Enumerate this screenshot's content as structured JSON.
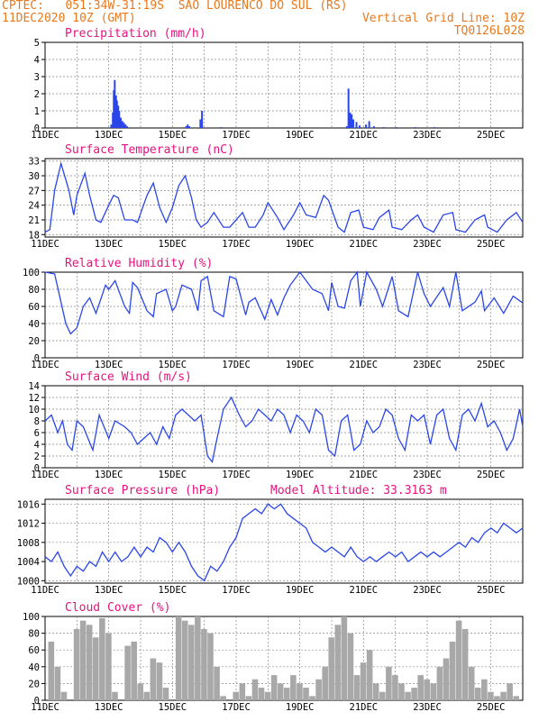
{
  "header": {
    "center": "CPTEC:",
    "coords": "051:34W-31:19S",
    "station": "SAO LOURENCO DO SUL (RS)",
    "init_time": "11DEC2020 10Z (GMT)",
    "grid_note": "Vertical Grid Line: 10Z",
    "model_code": "TQ0126L028"
  },
  "x_ticks": [
    "11DEC",
    "13DEC",
    "15DEC",
    "17DEC",
    "19DEC",
    "21DEC",
    "23DEC",
    "25DEC"
  ],
  "colors": {
    "line": "#2a46e8",
    "bars": "#2a46e8",
    "cloud": "#a8a8a8",
    "title": "#e6127e",
    "header": "#e8791e"
  },
  "chart_data": [
    {
      "type": "bar",
      "title": "Precipitation (mm/h)",
      "ylim": [
        0,
        5
      ],
      "yticks": [
        "0",
        "1",
        "2",
        "3",
        "4",
        "5"
      ],
      "x_unit": "days since 11DEC 10Z",
      "points": [
        [
          2.05,
          0.2
        ],
        [
          2.1,
          0.9
        ],
        [
          2.13,
          2.2
        ],
        [
          2.16,
          2.8
        ],
        [
          2.2,
          1.9
        ],
        [
          2.23,
          1.6
        ],
        [
          2.27,
          1.3
        ],
        [
          2.3,
          1.0
        ],
        [
          2.35,
          0.6
        ],
        [
          2.4,
          0.4
        ],
        [
          2.45,
          0.3
        ],
        [
          2.5,
          0.2
        ],
        [
          2.55,
          0.1
        ],
        [
          4.4,
          0.1
        ],
        [
          4.45,
          0.2
        ],
        [
          4.5,
          0.1
        ],
        [
          4.85,
          0.5
        ],
        [
          4.9,
          1.0
        ],
        [
          5.5,
          0.05
        ],
        [
          9.45,
          0.1
        ],
        [
          9.5,
          2.3
        ],
        [
          9.55,
          0.9
        ],
        [
          9.6,
          0.8
        ],
        [
          9.65,
          0.5
        ],
        [
          9.75,
          0.35
        ],
        [
          9.85,
          0.15
        ],
        [
          10.05,
          0.2
        ],
        [
          10.15,
          0.4
        ],
        [
          10.3,
          0.1
        ],
        [
          10.6,
          0.05
        ],
        [
          11.0,
          0.05
        ],
        [
          11.6,
          0.05
        ],
        [
          12.2,
          0.05
        ]
      ]
    },
    {
      "type": "line",
      "title": "Surface Temperature (nC)",
      "ylim": [
        17.5,
        33.5
      ],
      "yticks": [
        "18",
        "21",
        "24",
        "27",
        "30",
        "33"
      ],
      "x": [
        0,
        0.15,
        0.3,
        0.5,
        0.75,
        0.9,
        1.0,
        1.25,
        1.4,
        1.6,
        1.75,
        2.0,
        2.15,
        2.3,
        2.5,
        2.75,
        2.9,
        3.2,
        3.4,
        3.6,
        3.8,
        4.0,
        4.2,
        4.4,
        4.6,
        4.75,
        4.9,
        5.1,
        5.3,
        5.6,
        5.8,
        6.2,
        6.4,
        6.6,
        6.85,
        7.0,
        7.3,
        7.5,
        7.8,
        8.0,
        8.2,
        8.5,
        8.75,
        8.9,
        9.2,
        9.4,
        9.6,
        9.85,
        10.0,
        10.3,
        10.5,
        10.8,
        10.9,
        11.2,
        11.5,
        11.7,
        11.9,
        12.2,
        12.5,
        12.8,
        12.9,
        13.2,
        13.5,
        13.8,
        13.9,
        14.2,
        14.5,
        14.8,
        15.0
      ],
      "y": [
        18.5,
        19,
        27,
        32.5,
        27,
        22,
        26,
        30.5,
        26,
        21,
        20.5,
        24,
        26,
        25.5,
        21,
        21,
        20.5,
        26,
        28.5,
        23.5,
        20.5,
        23.5,
        28,
        30,
        25.5,
        21,
        19.5,
        20.5,
        22.5,
        19.5,
        19.5,
        22.5,
        19.5,
        19.5,
        22,
        24.5,
        21.5,
        19,
        22,
        24.5,
        22,
        21.5,
        26,
        25,
        19.5,
        18.5,
        22.5,
        23,
        19.5,
        19,
        21.5,
        23,
        19.5,
        19,
        21,
        22,
        19.5,
        18.5,
        22,
        22.5,
        19,
        18.5,
        21,
        22,
        19.5,
        18.5,
        21,
        22.5,
        20.5
      ]
    },
    {
      "type": "line",
      "title": "Relative Humidity (%)",
      "ylim": [
        0,
        100
      ],
      "yticks": [
        "0",
        "20",
        "40",
        "60",
        "80",
        "100"
      ],
      "x": [
        0,
        0.3,
        0.5,
        0.65,
        0.8,
        1.0,
        1.2,
        1.4,
        1.6,
        1.9,
        2.0,
        2.2,
        2.5,
        2.65,
        2.75,
        2.9,
        3.2,
        3.4,
        3.5,
        3.8,
        4.0,
        4.1,
        4.3,
        4.6,
        4.8,
        4.9,
        5.1,
        5.3,
        5.6,
        5.8,
        6.0,
        6.3,
        6.4,
        6.6,
        6.9,
        7.1,
        7.3,
        7.5,
        7.7,
        8.0,
        8.4,
        8.7,
        8.9,
        9.0,
        9.2,
        9.4,
        9.6,
        9.8,
        9.9,
        10.1,
        10.4,
        10.6,
        10.9,
        11.1,
        11.4,
        11.7,
        11.9,
        12.1,
        12.5,
        12.7,
        12.9,
        13.1,
        13.5,
        13.7,
        13.8,
        14.1,
        14.4,
        14.7,
        15.0
      ],
      "y": [
        100,
        98,
        65,
        40,
        28,
        35,
        60,
        70,
        52,
        85,
        80,
        90,
        60,
        52,
        88,
        82,
        55,
        48,
        75,
        80,
        55,
        60,
        85,
        80,
        55,
        90,
        95,
        55,
        48,
        95,
        92,
        50,
        65,
        70,
        45,
        68,
        50,
        70,
        85,
        100,
        80,
        75,
        55,
        88,
        60,
        58,
        90,
        100,
        60,
        100,
        80,
        60,
        95,
        55,
        48,
        100,
        75,
        60,
        82,
        60,
        100,
        55,
        65,
        78,
        55,
        70,
        52,
        72,
        64
      ]
    },
    {
      "type": "line",
      "title": "Surface Wind (m/s)",
      "ylim": [
        0,
        14
      ],
      "yticks": [
        "0",
        "2",
        "4",
        "6",
        "8",
        "10",
        "12",
        "14"
      ],
      "x": [
        0,
        0.2,
        0.4,
        0.55,
        0.7,
        0.85,
        1.0,
        1.2,
        1.5,
        1.7,
        1.85,
        2.0,
        2.2,
        2.5,
        2.7,
        2.9,
        3.1,
        3.3,
        3.5,
        3.7,
        3.9,
        4.1,
        4.3,
        4.5,
        4.7,
        4.9,
        5.1,
        5.25,
        5.4,
        5.6,
        5.85,
        6.1,
        6.3,
        6.5,
        6.7,
        6.9,
        7.1,
        7.3,
        7.5,
        7.7,
        7.9,
        8.1,
        8.3,
        8.5,
        8.7,
        8.9,
        9.1,
        9.3,
        9.5,
        9.7,
        9.9,
        10.1,
        10.3,
        10.5,
        10.7,
        10.9,
        11.1,
        11.3,
        11.5,
        11.7,
        11.9,
        12.1,
        12.3,
        12.5,
        12.7,
        12.9,
        13.1,
        13.3,
        13.5,
        13.7,
        13.9,
        14.1,
        14.3,
        14.5,
        14.7,
        14.9,
        15.0
      ],
      "y": [
        8,
        9,
        6,
        8,
        4,
        3,
        8,
        7,
        3,
        9,
        7,
        5,
        8,
        7,
        6,
        4,
        5,
        6,
        4,
        7,
        5,
        9,
        10,
        9,
        8,
        9,
        2,
        1,
        5,
        10,
        12,
        9,
        7,
        8,
        10,
        9,
        8,
        10,
        9,
        6,
        9,
        8,
        6,
        10,
        9,
        3,
        2,
        8,
        9,
        3,
        4,
        8,
        6,
        7,
        10,
        9,
        5,
        3,
        9,
        8,
        9,
        4,
        9,
        10,
        5,
        3,
        9,
        10,
        8,
        11,
        7,
        8,
        6,
        3,
        5,
        10,
        7
      ]
    },
    {
      "type": "line",
      "title": "Surface Pressure (hPa)",
      "annotation": "Model Altitude: 33.3163 m",
      "ylim": [
        999.5,
        1017
      ],
      "yticks": [
        "1000",
        "1004",
        "1008",
        "1012",
        "1016"
      ],
      "x": [
        0,
        0.2,
        0.4,
        0.6,
        0.8,
        1.0,
        1.2,
        1.4,
        1.6,
        1.8,
        2.0,
        2.2,
        2.4,
        2.6,
        2.8,
        3.0,
        3.2,
        3.4,
        3.6,
        3.8,
        4.0,
        4.2,
        4.4,
        4.6,
        4.8,
        5.0,
        5.2,
        5.4,
        5.6,
        5.8,
        6.0,
        6.2,
        6.4,
        6.6,
        6.8,
        7.0,
        7.2,
        7.4,
        7.6,
        7.8,
        8.0,
        8.2,
        8.4,
        8.6,
        8.8,
        9.0,
        9.2,
        9.4,
        9.6,
        9.8,
        10.0,
        10.2,
        10.4,
        10.6,
        10.8,
        11.0,
        11.2,
        11.4,
        11.6,
        11.8,
        12.0,
        12.2,
        12.4,
        12.6,
        12.8,
        13.0,
        13.2,
        13.4,
        13.6,
        13.8,
        14.0,
        14.2,
        14.4,
        14.6,
        14.8,
        15.0
      ],
      "y": [
        1005,
        1004,
        1006,
        1003,
        1001,
        1003,
        1002,
        1004,
        1003,
        1006,
        1004,
        1006,
        1004,
        1005,
        1007,
        1005,
        1007,
        1006,
        1009,
        1008,
        1006,
        1008,
        1006,
        1003,
        1001,
        1000,
        1003,
        1002,
        1004,
        1007,
        1009,
        1013,
        1014,
        1015,
        1014,
        1016,
        1015,
        1016,
        1014,
        1013,
        1012,
        1011,
        1008,
        1007,
        1006,
        1007,
        1006,
        1005,
        1007,
        1005,
        1004,
        1005,
        1004,
        1005,
        1006,
        1005,
        1006,
        1004,
        1005,
        1006,
        1005,
        1006,
        1005,
        1006,
        1007,
        1008,
        1007,
        1009,
        1008,
        1010,
        1011,
        1010,
        1012,
        1011,
        1010,
        1011
      ]
    },
    {
      "type": "bar",
      "title": "Cloud Cover (%)",
      "ylim": [
        0,
        100
      ],
      "yticks": [
        "0",
        "20",
        "40",
        "60",
        "80",
        "100"
      ],
      "x": [
        0.2,
        0.4,
        0.6,
        0.8,
        1.0,
        1.2,
        1.4,
        1.6,
        1.8,
        2.0,
        2.2,
        2.4,
        2.6,
        2.8,
        3.0,
        3.2,
        3.4,
        3.6,
        3.8,
        4.0,
        4.2,
        4.4,
        4.6,
        4.8,
        5.0,
        5.2,
        5.4,
        5.6,
        5.8,
        6.0,
        6.2,
        6.4,
        6.6,
        6.8,
        7.0,
        7.2,
        7.4,
        7.6,
        7.8,
        8.0,
        8.2,
        8.4,
        8.6,
        8.8,
        9.0,
        9.2,
        9.4,
        9.6,
        9.8,
        10.0,
        10.2,
        10.4,
        10.6,
        10.8,
        11.0,
        11.2,
        11.4,
        11.6,
        11.8,
        12.0,
        12.2,
        12.4,
        12.6,
        12.8,
        13.0,
        13.2,
        13.4,
        13.6,
        13.8,
        14.0,
        14.2,
        14.4,
        14.6,
        14.8
      ],
      "values": [
        70,
        40,
        10,
        0,
        85,
        95,
        90,
        75,
        98,
        80,
        10,
        0,
        65,
        70,
        20,
        10,
        50,
        45,
        15,
        0,
        100,
        95,
        90,
        100,
        85,
        80,
        40,
        5,
        0,
        10,
        20,
        5,
        25,
        15,
        10,
        30,
        20,
        15,
        30,
        20,
        15,
        5,
        25,
        40,
        75,
        90,
        100,
        80,
        30,
        45,
        60,
        20,
        10,
        40,
        30,
        20,
        10,
        15,
        30,
        25,
        20,
        40,
        50,
        70,
        95,
        85,
        40,
        15,
        25,
        10,
        5,
        10,
        20,
        5
      ]
    }
  ]
}
